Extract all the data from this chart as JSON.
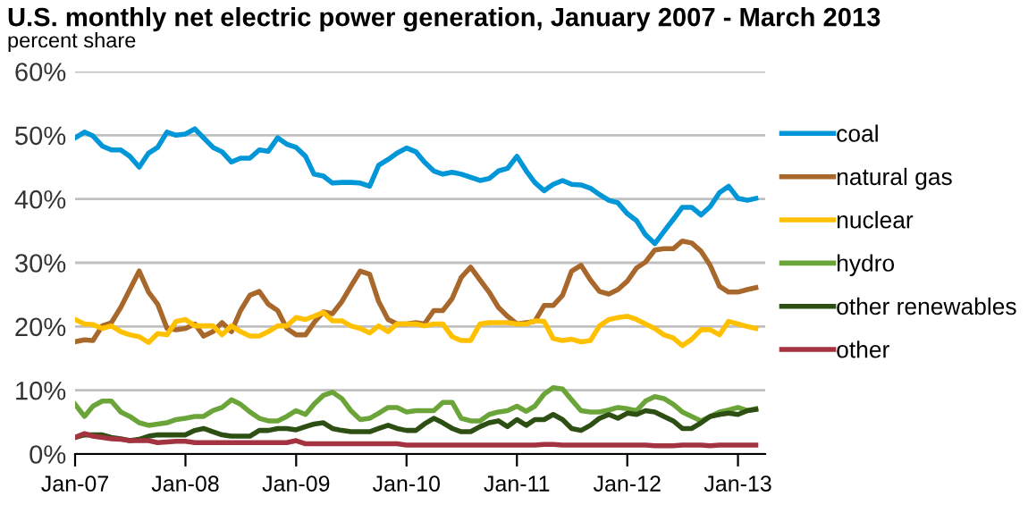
{
  "chart_data": {
    "type": "line",
    "title": "U.S. monthly net electric power generation, January 2007 - March 2013",
    "subtitle": "percent share",
    "x": [
      "2007-01",
      "2007-02",
      "2007-03",
      "2007-04",
      "2007-05",
      "2007-06",
      "2007-07",
      "2007-08",
      "2007-09",
      "2007-10",
      "2007-11",
      "2007-12",
      "2008-01",
      "2008-02",
      "2008-03",
      "2008-04",
      "2008-05",
      "2008-06",
      "2008-07",
      "2008-08",
      "2008-09",
      "2008-10",
      "2008-11",
      "2008-12",
      "2009-01",
      "2009-02",
      "2009-03",
      "2009-04",
      "2009-05",
      "2009-06",
      "2009-07",
      "2009-08",
      "2009-09",
      "2009-10",
      "2009-11",
      "2009-12",
      "2010-01",
      "2010-02",
      "2010-03",
      "2010-04",
      "2010-05",
      "2010-06",
      "2010-07",
      "2010-08",
      "2010-09",
      "2010-10",
      "2010-11",
      "2010-12",
      "2011-01",
      "2011-02",
      "2011-03",
      "2011-04",
      "2011-05",
      "2011-06",
      "2011-07",
      "2011-08",
      "2011-09",
      "2011-10",
      "2011-11",
      "2011-12",
      "2012-01",
      "2012-02",
      "2012-03",
      "2012-04",
      "2012-05",
      "2012-06",
      "2012-07",
      "2012-08",
      "2012-09",
      "2012-10",
      "2012-11",
      "2012-12",
      "2013-01",
      "2013-02",
      "2013-03"
    ],
    "series": [
      {
        "name": "coal",
        "color": "#0096d7",
        "values": [
          49.6,
          50.5,
          49.9,
          48.3,
          47.7,
          47.7,
          46.7,
          45.0,
          47.2,
          48.1,
          50.5,
          50.0,
          50.2,
          51.0,
          49.6,
          48.1,
          47.4,
          45.8,
          46.4,
          46.4,
          47.7,
          47.5,
          49.6,
          48.6,
          48.1,
          46.7,
          43.9,
          43.6,
          42.5,
          42.6,
          42.6,
          42.5,
          42.0,
          45.3,
          46.2,
          47.2,
          48.0,
          47.4,
          45.8,
          44.4,
          43.9,
          44.2,
          43.9,
          43.4,
          42.9,
          43.2,
          44.4,
          44.8,
          46.7,
          44.4,
          42.6,
          41.3,
          42.3,
          42.9,
          42.3,
          42.2,
          41.7,
          40.7,
          39.8,
          39.4,
          37.7,
          36.6,
          34.4,
          33.0,
          34.9,
          36.8,
          38.7,
          38.7,
          37.5,
          38.8,
          41.0,
          42.0,
          40.1,
          39.8,
          40.1
        ]
      },
      {
        "name": "natural gas",
        "color": "#a8682c",
        "values": [
          17.6,
          17.9,
          17.8,
          20.1,
          20.6,
          23.0,
          25.8,
          28.7,
          25.4,
          23.5,
          19.7,
          19.5,
          19.7,
          20.4,
          18.5,
          19.2,
          20.6,
          19.2,
          22.5,
          24.9,
          25.5,
          23.5,
          22.5,
          19.7,
          18.7,
          18.7,
          20.6,
          22.3,
          22.0,
          23.9,
          26.3,
          28.7,
          28.2,
          23.9,
          21.1,
          20.4,
          20.4,
          20.6,
          20.4,
          22.5,
          22.5,
          24.4,
          27.7,
          29.3,
          27.3,
          25.4,
          23.0,
          21.6,
          20.4,
          20.6,
          20.8,
          23.3,
          23.3,
          24.9,
          28.7,
          29.6,
          27.3,
          25.5,
          25.1,
          25.8,
          27.1,
          29.2,
          30.1,
          32.0,
          32.2,
          32.2,
          33.4,
          33.1,
          31.8,
          29.6,
          26.3,
          25.4,
          25.4,
          25.8,
          26.1
        ]
      },
      {
        "name": "nuclear",
        "color": "#ffc000",
        "values": [
          21.1,
          20.4,
          20.3,
          19.7,
          20.1,
          19.2,
          18.7,
          18.4,
          17.5,
          18.9,
          18.7,
          20.8,
          21.1,
          20.1,
          20.1,
          20.1,
          18.7,
          20.1,
          19.2,
          18.5,
          18.5,
          19.2,
          20.1,
          20.1,
          21.4,
          21.1,
          21.6,
          22.2,
          20.9,
          20.9,
          20.1,
          19.7,
          19.0,
          20.1,
          19.2,
          20.4,
          20.4,
          20.4,
          20.1,
          20.4,
          20.4,
          18.4,
          17.8,
          17.8,
          20.4,
          20.6,
          20.6,
          20.6,
          20.4,
          20.4,
          20.9,
          20.8,
          18.1,
          17.8,
          18.0,
          17.6,
          17.8,
          20.1,
          21.1,
          21.4,
          21.6,
          21.1,
          20.4,
          19.7,
          18.7,
          18.2,
          17.0,
          18.0,
          19.5,
          19.5,
          18.7,
          20.8,
          20.4,
          20.0,
          19.7
        ]
      },
      {
        "name": "hydro",
        "color": "#6ba539",
        "values": [
          7.8,
          5.9,
          7.5,
          8.3,
          8.3,
          6.6,
          5.9,
          4.9,
          4.5,
          4.7,
          4.9,
          5.4,
          5.6,
          5.9,
          5.9,
          6.8,
          7.3,
          8.5,
          7.8,
          6.6,
          5.6,
          5.2,
          5.2,
          5.9,
          6.8,
          6.2,
          7.8,
          9.2,
          9.7,
          8.7,
          6.8,
          5.4,
          5.6,
          6.4,
          7.3,
          7.3,
          6.6,
          6.8,
          6.8,
          6.8,
          8.1,
          8.1,
          5.6,
          5.2,
          5.2,
          6.2,
          6.6,
          6.8,
          7.5,
          6.7,
          7.5,
          9.4,
          10.4,
          10.2,
          8.5,
          6.8,
          6.6,
          6.6,
          6.9,
          7.3,
          7.1,
          6.8,
          8.3,
          9.0,
          8.7,
          7.8,
          6.6,
          5.9,
          5.2,
          5.9,
          6.6,
          6.9,
          7.3,
          6.8,
          7.1
        ]
      },
      {
        "name": "other renewables",
        "color": "#2d4f14",
        "values": [
          2.6,
          3.0,
          3.0,
          3.0,
          2.6,
          2.4,
          2.1,
          2.3,
          2.8,
          3.0,
          3.0,
          3.0,
          3.0,
          3.7,
          4.0,
          3.5,
          3.0,
          2.8,
          2.8,
          2.8,
          3.7,
          3.7,
          4.0,
          4.0,
          3.8,
          4.3,
          4.7,
          4.9,
          4.0,
          3.7,
          3.5,
          3.5,
          3.5,
          4.0,
          4.5,
          4.0,
          3.7,
          3.7,
          4.7,
          5.6,
          4.9,
          4.0,
          3.5,
          3.5,
          4.3,
          4.9,
          5.2,
          4.3,
          5.4,
          4.5,
          5.4,
          5.4,
          6.2,
          5.4,
          4.0,
          3.7,
          4.5,
          5.6,
          6.2,
          5.6,
          6.4,
          6.2,
          6.8,
          6.6,
          5.9,
          5.2,
          4.0,
          4.0,
          4.9,
          5.9,
          6.2,
          6.4,
          6.2,
          6.8,
          7.0
        ]
      },
      {
        "name": "other",
        "color": "#a33340",
        "values": [
          2.6,
          3.2,
          2.8,
          2.6,
          2.4,
          2.3,
          2.1,
          2.1,
          2.1,
          1.8,
          1.9,
          2.0,
          2.0,
          1.8,
          1.8,
          1.8,
          1.8,
          1.8,
          1.8,
          1.8,
          1.8,
          1.8,
          1.8,
          1.8,
          2.1,
          1.6,
          1.6,
          1.6,
          1.6,
          1.6,
          1.6,
          1.6,
          1.6,
          1.6,
          1.6,
          1.6,
          1.4,
          1.4,
          1.4,
          1.4,
          1.4,
          1.4,
          1.4,
          1.4,
          1.4,
          1.4,
          1.4,
          1.4,
          1.4,
          1.4,
          1.4,
          1.5,
          1.5,
          1.4,
          1.4,
          1.4,
          1.4,
          1.4,
          1.4,
          1.4,
          1.4,
          1.4,
          1.4,
          1.3,
          1.3,
          1.3,
          1.4,
          1.4,
          1.4,
          1.3,
          1.4,
          1.4,
          1.4,
          1.4,
          1.4
        ]
      }
    ],
    "xlim": [
      "2007-01",
      "2013-04"
    ],
    "xticks": [
      {
        "value": "2007-01",
        "label": "Jan-07"
      },
      {
        "value": "2008-01",
        "label": "Jan-08"
      },
      {
        "value": "2009-01",
        "label": "Jan-09"
      },
      {
        "value": "2010-01",
        "label": "Jan-10"
      },
      {
        "value": "2011-01",
        "label": "Jan-11"
      },
      {
        "value": "2012-01",
        "label": "Jan-12"
      },
      {
        "value": "2013-01",
        "label": "Jan-13"
      }
    ],
    "ylim": [
      0,
      60
    ],
    "yticks": [
      {
        "value": 0,
        "label": "0%"
      },
      {
        "value": 10,
        "label": "10%"
      },
      {
        "value": 20,
        "label": "20%"
      },
      {
        "value": 30,
        "label": "30%"
      },
      {
        "value": 40,
        "label": "40%"
      },
      {
        "value": 50,
        "label": "50%"
      },
      {
        "value": 60,
        "label": "60%"
      }
    ],
    "grid": "y",
    "legend": "right",
    "line_style": "solid"
  }
}
